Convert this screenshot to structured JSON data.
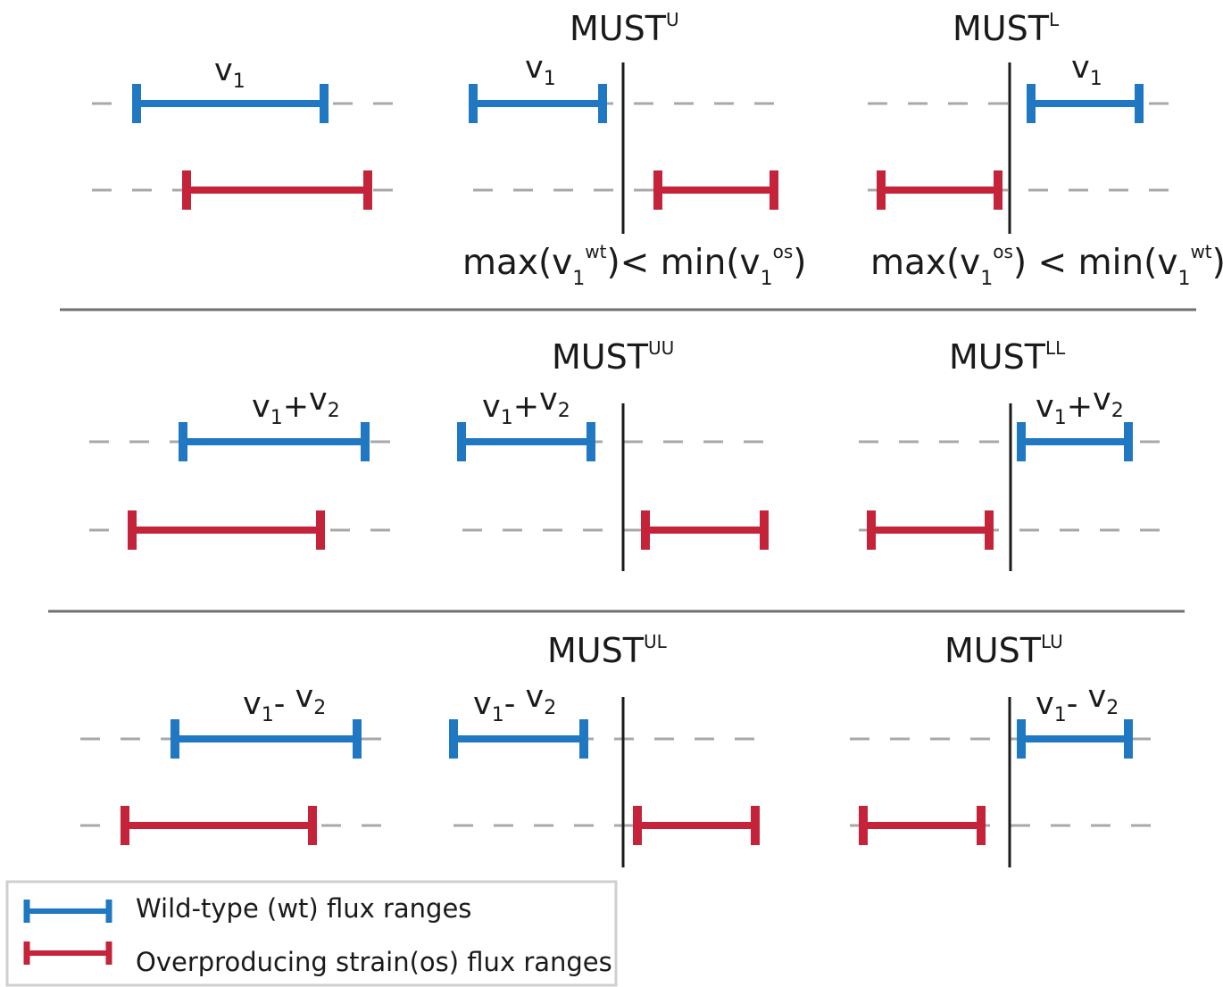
{
  "colors": {
    "wild_type": "#1f78c1",
    "overproducing": "#c4233a",
    "dash": "#a8a8a8",
    "divider": "#1a1a1a",
    "separator": "#707070",
    "legend_border": "#cfcfcf"
  },
  "panels": [
    {
      "id": "single",
      "examples": [
        {
          "title": null,
          "label": {
            "parts": [
              [
                "v",
                "1"
              ]
            ]
          },
          "condition": null,
          "divider": false
        },
        {
          "title": {
            "base": "MUST",
            "sup": "U"
          },
          "label": {
            "parts": [
              [
                "v",
                "1"
              ]
            ]
          },
          "condition": {
            "left": "max(v",
            "l_sub": "1",
            "l_sup": "wt",
            "mid": ")< min(v",
            "r_sub": "1",
            "r_sup": "os",
            "end": ")"
          },
          "divider": true
        },
        {
          "title": {
            "base": "MUST",
            "sup": "L"
          },
          "label": {
            "parts": [
              [
                "v",
                "1"
              ]
            ]
          },
          "condition": {
            "left": "max(v",
            "l_sub": "1",
            "l_sup": "os",
            "mid": ") < min(v",
            "r_sub": "1",
            "r_sup": "wt",
            "end": ")"
          },
          "divider": true
        }
      ]
    },
    {
      "id": "sum",
      "examples": [
        {
          "title": null,
          "label": {
            "parts": [
              [
                "v",
                "1"
              ],
              [
                "+",
                ""
              ],
              [
                "v",
                "2"
              ]
            ]
          },
          "divider": false
        },
        {
          "title": {
            "base": "MUST",
            "sup": "UU"
          },
          "label": {
            "parts": [
              [
                "v",
                "1"
              ],
              [
                "+",
                ""
              ],
              [
                "v",
                "2"
              ]
            ]
          },
          "divider": true
        },
        {
          "title": {
            "base": "MUST",
            "sup": "LL"
          },
          "label": {
            "parts": [
              [
                "v",
                "1"
              ],
              [
                "+",
                ""
              ],
              [
                "v",
                "2"
              ]
            ]
          },
          "divider": true
        }
      ]
    },
    {
      "id": "difference",
      "examples": [
        {
          "title": null,
          "label": {
            "parts": [
              [
                "v",
                "1"
              ],
              [
                "- ",
                ""
              ],
              [
                "v",
                "2"
              ]
            ]
          },
          "divider": false
        },
        {
          "title": {
            "base": "MUST",
            "sup": "UL"
          },
          "label": {
            "parts": [
              [
                "v",
                "1"
              ],
              [
                "- ",
                ""
              ],
              [
                "v",
                "2"
              ]
            ]
          },
          "divider": true
        },
        {
          "title": {
            "base": "MUST",
            "sup": "LU"
          },
          "label": {
            "parts": [
              [
                "v",
                "1"
              ],
              [
                "- ",
                ""
              ],
              [
                "v",
                "2"
              ]
            ]
          },
          "divider": true
        }
      ]
    }
  ],
  "legend": {
    "wild_type_label": "Wild-type (wt) flux ranges",
    "overproducing_label": "Overproducing strain(os) flux ranges"
  }
}
